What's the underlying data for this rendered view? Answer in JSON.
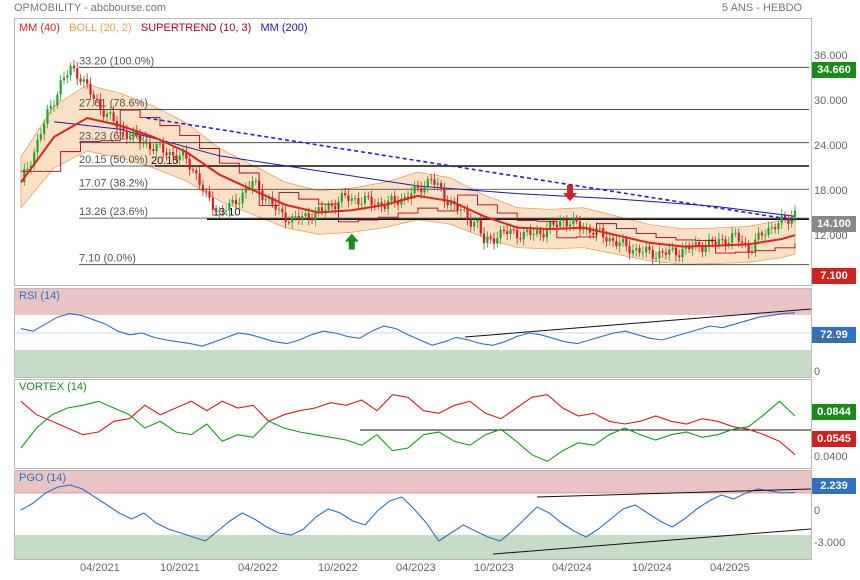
{
  "header": {
    "title": "OPMOBILITY - abcbourse.com",
    "period": "5 ANS - HEBDO"
  },
  "legend": [
    {
      "label": "MM (40)",
      "color": "#e0241b"
    },
    {
      "label": "BOLL (20, 2)",
      "color": "#f0a050"
    },
    {
      "label": "SUPERTREND (10, 3)",
      "color": "#b0002a"
    },
    {
      "label": "MM (200)",
      "color": "#1a1ab0"
    }
  ],
  "price_axis": [
    "36.000",
    "30.000",
    "24.000",
    "18.000",
    "12.000"
  ],
  "price_tags": {
    "high": "34.660",
    "last": "14.100",
    "low": "7.100"
  },
  "fibo": [
    {
      "label": "33.20  (100.0%)",
      "value": 33.2
    },
    {
      "label": "27.61  (78.6%)",
      "value": 27.61
    },
    {
      "label": "23.23  (61.8%)",
      "value": 23.23
    },
    {
      "label": "20.15  (50.0%)",
      "value": 20.15
    },
    {
      "label": "17.07  (38.2%)",
      "value": 17.07
    },
    {
      "label": "13.26  (23.6%)",
      "value": 13.26
    },
    {
      "label": "7.10  (0.0%)",
      "value": 7.1
    }
  ],
  "annotations": {
    "level_a": "20.15",
    "level_b": "13.10"
  },
  "x_labels": [
    "04/2021",
    "10/2021",
    "04/2022",
    "10/2022",
    "04/2023",
    "10/2023",
    "04/2024",
    "10/2024",
    "04/2025"
  ],
  "rsi": {
    "label": "RSI (14)",
    "axis": [
      "40.00",
      "0"
    ],
    "value_tag": "72.99"
  },
  "vortex": {
    "label": "VORTEX (14)",
    "axis": [
      "0.0400"
    ],
    "tag_plus": "0.0844",
    "tag_minus": "0.0545"
  },
  "pgo": {
    "label": "PGO (14)",
    "axis": [
      "0",
      "-3.000"
    ],
    "value_tag": "2.239"
  },
  "colors": {
    "up": "#2aa02a",
    "down": "#d42020",
    "ma40": "#e0241b",
    "ma200": "#1a1ab0",
    "boll": "#f5c896",
    "rsi": "#2f6fc4",
    "green": "#1a8a1a",
    "red": "#cc2222"
  },
  "chart_data": [
    {
      "type": "candlestick",
      "title": "OPMOBILITY",
      "ylim": [
        6,
        38
      ],
      "x_ticks": [
        "04/2021",
        "10/2021",
        "04/2022",
        "10/2022",
        "04/2023",
        "10/2023",
        "04/2024",
        "10/2024",
        "04/2025"
      ],
      "close_path": [
        [
          0,
          18
        ],
        [
          4,
          22
        ],
        [
          8,
          27
        ],
        [
          12,
          31
        ],
        [
          15,
          33
        ],
        [
          18,
          32
        ],
        [
          22,
          29
        ],
        [
          26,
          27
        ],
        [
          30,
          25
        ],
        [
          34,
          24
        ],
        [
          38,
          23
        ],
        [
          44,
          22
        ],
        [
          50,
          21
        ],
        [
          53,
          19
        ],
        [
          56,
          16
        ],
        [
          60,
          14
        ],
        [
          64,
          15
        ],
        [
          68,
          17
        ],
        [
          70,
          18
        ],
        [
          74,
          16
        ],
        [
          78,
          14
        ],
        [
          82,
          13
        ],
        [
          86,
          13.5
        ],
        [
          90,
          14
        ],
        [
          94,
          15
        ],
        [
          98,
          16
        ],
        [
          104,
          15.5
        ],
        [
          110,
          15
        ],
        [
          116,
          16
        ],
        [
          120,
          17
        ],
        [
          124,
          18.5
        ],
        [
          128,
          16
        ],
        [
          132,
          14.5
        ],
        [
          136,
          13
        ],
        [
          138,
          12.5
        ],
        [
          140,
          10
        ],
        [
          144,
          11
        ],
        [
          148,
          11.5
        ],
        [
          152,
          11
        ],
        [
          158,
          11.5
        ],
        [
          164,
          13
        ],
        [
          170,
          12
        ],
        [
          176,
          11
        ],
        [
          180,
          10
        ],
        [
          186,
          9
        ],
        [
          192,
          8.5
        ],
        [
          198,
          8.8
        ],
        [
          204,
          9.5
        ],
        [
          210,
          10
        ],
        [
          216,
          10.8
        ],
        [
          220,
          9.2
        ],
        [
          224,
          11
        ],
        [
          228,
          12.5
        ],
        [
          232,
          13
        ],
        [
          234,
          14.1
        ]
      ],
      "ma40": [
        [
          0,
          18
        ],
        [
          10,
          24
        ],
        [
          20,
          26.5
        ],
        [
          30,
          25.5
        ],
        [
          40,
          24
        ],
        [
          50,
          22
        ],
        [
          60,
          19
        ],
        [
          70,
          17
        ],
        [
          80,
          15
        ],
        [
          90,
          14
        ],
        [
          100,
          14.3
        ],
        [
          110,
          15
        ],
        [
          120,
          16.2
        ],
        [
          130,
          15.5
        ],
        [
          140,
          13.5
        ],
        [
          150,
          12
        ],
        [
          160,
          11.8
        ],
        [
          170,
          12
        ],
        [
          180,
          11
        ],
        [
          190,
          10
        ],
        [
          200,
          9.5
        ],
        [
          210,
          9.6
        ],
        [
          220,
          9.8
        ],
        [
          230,
          10.5
        ],
        [
          234,
          11
        ]
      ],
      "ma200": [
        [
          10,
          26
        ],
        [
          30,
          25
        ],
        [
          60,
          21.5
        ],
        [
          90,
          19.5
        ],
        [
          120,
          17.5
        ],
        [
          150,
          16.5
        ],
        [
          180,
          15.8
        ],
        [
          210,
          14.8
        ],
        [
          234,
          13.5
        ]
      ],
      "trendline": [
        [
          38,
          26.5
        ],
        [
          234,
          13
        ]
      ],
      "fibonacci": [
        33.2,
        27.61,
        23.23,
        20.15,
        17.07,
        13.26,
        7.1
      ],
      "markers": [
        {
          "x": 100,
          "y": 11.2,
          "type": "buy"
        },
        {
          "x": 166,
          "y": 15.5,
          "type": "sell"
        }
      ],
      "last": 14.1
    },
    {
      "type": "line",
      "title": "RSI (14)",
      "ylim": [
        0,
        100
      ],
      "series": [
        {
          "name": "RSI (14)",
          "values": [
            55,
            52,
            60,
            68,
            72,
            70,
            65,
            60,
            52,
            48,
            50,
            45,
            42,
            40,
            38,
            35,
            40,
            45,
            50,
            48,
            44,
            40,
            38,
            42,
            48,
            52,
            50,
            46,
            44,
            52,
            58,
            55,
            48,
            42,
            36,
            40,
            45,
            42,
            38,
            36,
            40,
            46,
            50,
            48,
            44,
            40,
            38,
            42,
            46,
            50,
            52,
            48,
            44,
            42,
            46,
            50,
            54,
            58,
            56,
            60,
            64,
            68,
            70,
            72,
            73
          ]
        }
      ]
    },
    {
      "type": "line",
      "title": "VORTEX (14)",
      "series": [
        {
          "name": "VI+",
          "values": [
            0.6,
            0.75,
            0.85,
            0.9,
            0.92,
            0.95,
            0.9,
            0.85,
            0.75,
            0.8,
            0.72,
            0.7,
            0.78,
            0.65,
            0.7,
            0.68,
            0.8,
            0.75,
            0.72,
            0.7,
            0.68,
            0.66,
            0.62,
            0.7,
            0.58,
            0.6,
            0.7,
            0.72,
            0.65,
            0.62,
            0.7,
            0.74,
            0.65,
            0.55,
            0.5,
            0.58,
            0.64,
            0.62,
            0.7,
            0.75,
            0.7,
            0.66,
            0.7,
            0.72,
            0.68,
            0.7,
            0.74,
            0.76,
            0.85,
            0.95,
            0.84
          ]
        },
        {
          "name": "VI-",
          "values": [
            0.95,
            0.85,
            0.8,
            0.75,
            0.7,
            0.72,
            0.8,
            0.82,
            0.92,
            0.85,
            0.9,
            0.95,
            0.88,
            0.95,
            0.9,
            0.92,
            0.8,
            0.85,
            0.88,
            0.9,
            0.94,
            0.92,
            0.96,
            0.88,
            1.0,
            0.98,
            0.88,
            0.86,
            0.92,
            0.95,
            0.86,
            0.82,
            0.9,
            0.98,
            1.0,
            0.9,
            0.84,
            0.86,
            0.8,
            0.78,
            0.8,
            0.84,
            0.8,
            0.78,
            0.82,
            0.8,
            0.76,
            0.74,
            0.7,
            0.65,
            0.55
          ]
        }
      ]
    },
    {
      "type": "line",
      "title": "PGO (14)",
      "series": [
        {
          "name": "PGO (14)",
          "values": [
            0.5,
            1.2,
            2.2,
            2.8,
            3.0,
            2.6,
            1.8,
            1.0,
            0.2,
            -0.4,
            0.2,
            -0.8,
            -1.4,
            -1.8,
            -2.2,
            -2.6,
            -1.6,
            -0.6,
            0.2,
            -0.4,
            -1.2,
            -1.8,
            -2.0,
            -1.4,
            -0.2,
            0.6,
            0.2,
            -0.6,
            -1.0,
            0.4,
            1.4,
            1.8,
            0.6,
            -0.8,
            -2.6,
            -1.8,
            -1.0,
            -1.6,
            -2.2,
            -2.6,
            -1.6,
            -0.4,
            0.8,
            0.2,
            -0.8,
            -1.6,
            -2.2,
            -1.4,
            -0.4,
            0.6,
            1.0,
            0.2,
            -0.6,
            -1.2,
            -0.4,
            0.6,
            1.4,
            2.0,
            1.6,
            2.2,
            2.6,
            2.4,
            2.2,
            2.24
          ]
        }
      ]
    }
  ]
}
